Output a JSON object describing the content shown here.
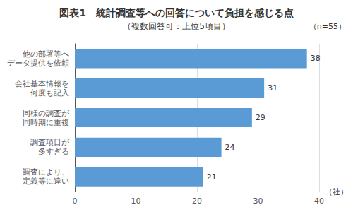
{
  "chart_data": {
    "type": "bar",
    "orientation": "horizontal",
    "title": "図表1　統計調査等への回答について負担を感じる点",
    "subtitle": "（複数回答可：上位5項目）",
    "annotations": [
      "（n=55）"
    ],
    "xlabel": "（社）",
    "categories": [
      "調査により、\n定義等に違い",
      "調査項目が\n多すぎる",
      "同様の調査が\n同時期に重複",
      "会社基本情報を\n何度も記入",
      "他の部署等へ\nデータ提供を依頼"
    ],
    "values": [
      21,
      24,
      29,
      31,
      38
    ],
    "color": "#5B9BD5",
    "xlim": [
      0,
      40
    ],
    "xticks": [
      0,
      10,
      20,
      30,
      40
    ],
    "grid": true,
    "data_labels": true
  }
}
